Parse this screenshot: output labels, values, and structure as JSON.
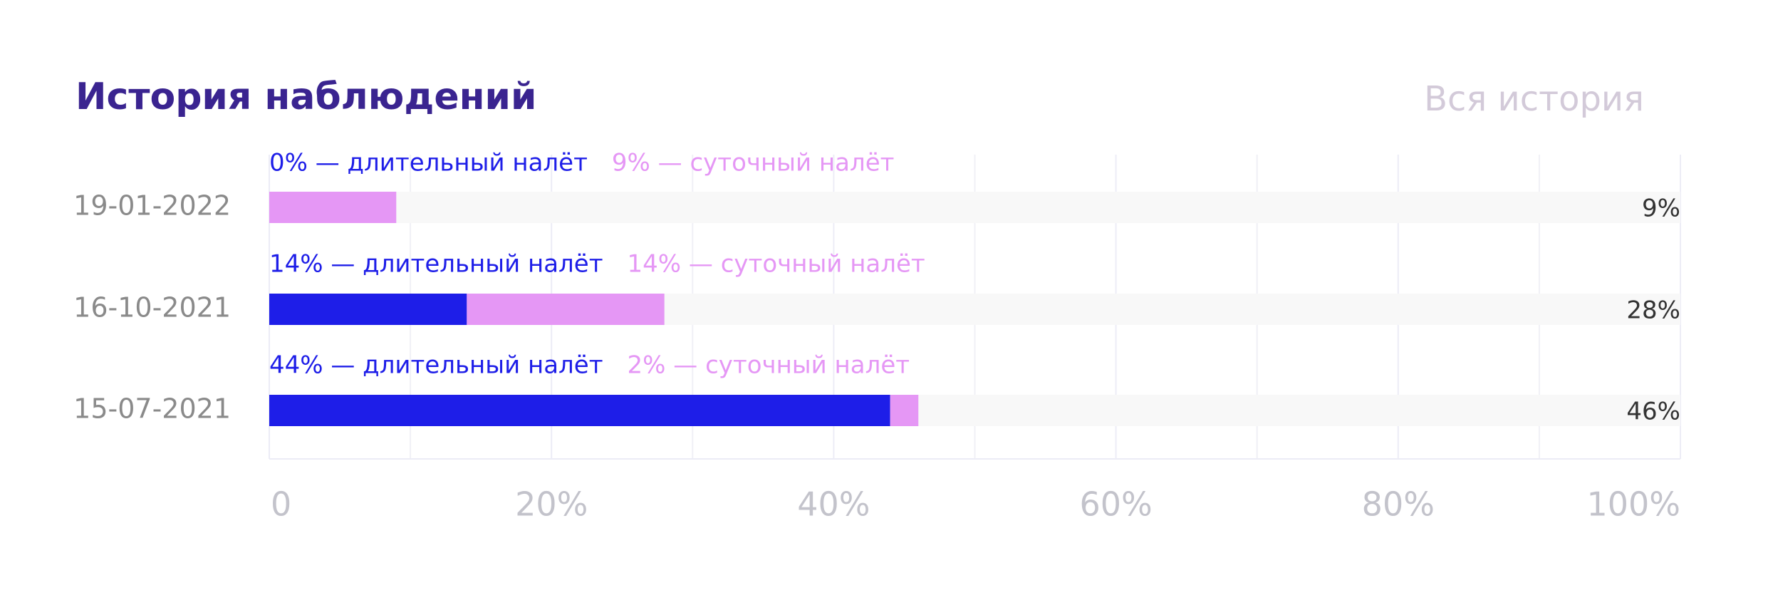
{
  "header": {
    "title": "История наблюдений",
    "link": "Вся история"
  },
  "chart_data": {
    "type": "bar",
    "orientation": "horizontal",
    "stacked": true,
    "categories": [
      "19-01-2022",
      "16-10-2021",
      "15-07-2021"
    ],
    "series": [
      {
        "color": "#1e1ee8",
        "values": [
          0,
          14,
          44
        ],
        "value_labels": [
          "0% — длительный налёт",
          "14% — длительный налёт",
          "44% — длительный налёт"
        ]
      },
      {
        "color": "#e597f5",
        "values": [
          9,
          14,
          2
        ],
        "value_labels": [
          "9% — суточный налёт",
          "14% — суточный налёт",
          "2% — суточный налёт"
        ]
      }
    ],
    "total_labels": [
      "9%",
      "28%",
      "46%"
    ],
    "xlim": [
      0,
      100
    ],
    "xticks": [
      0,
      {
        "value": 20,
        "label": "20%"
      },
      {
        "value": 40,
        "label": "40%"
      },
      {
        "value": 60,
        "label": "60%"
      },
      {
        "value": 80,
        "label": "80%"
      },
      {
        "value": 100,
        "label": "100%"
      }
    ],
    "minor_xticks": [
      10,
      30,
      50,
      70,
      90
    ],
    "grid": true
  }
}
